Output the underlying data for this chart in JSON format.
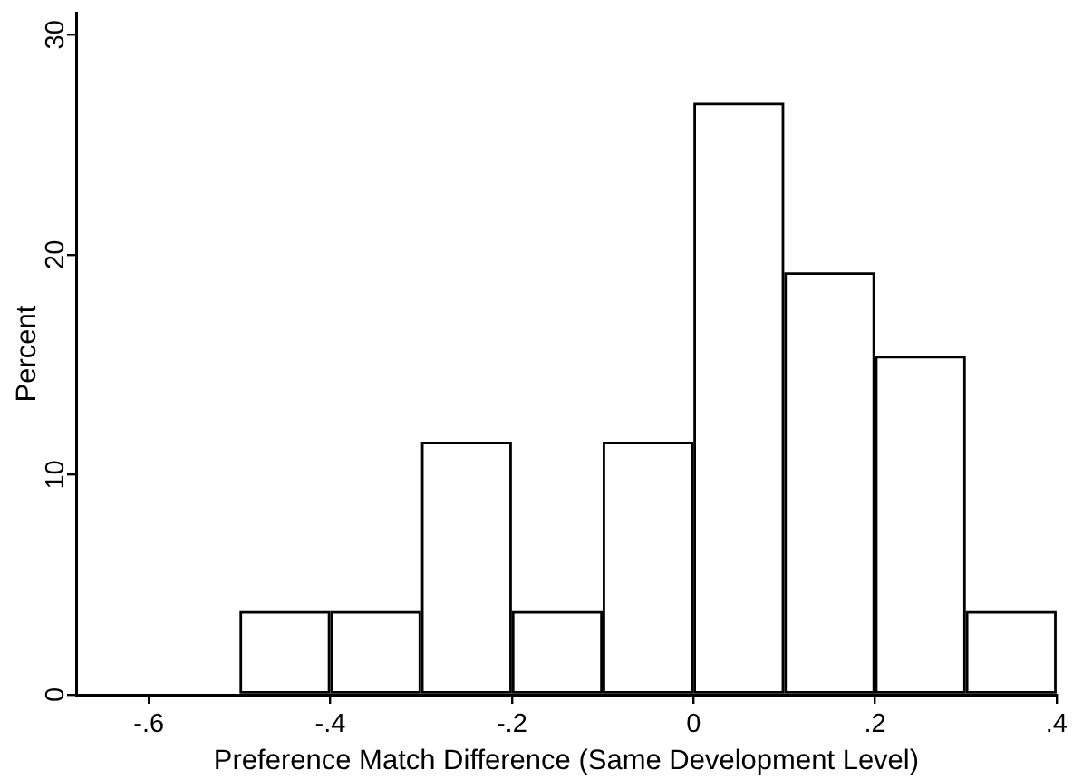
{
  "chart_data": {
    "type": "histogram",
    "xlabel": "Preference Match Difference (Same Development Level)",
    "ylabel": "Percent",
    "bins": [
      -0.5,
      -0.4,
      -0.3,
      -0.2,
      -0.1,
      0,
      0.1,
      0.2,
      0.3,
      0.4
    ],
    "values": [
      3.8,
      3.8,
      11.5,
      3.8,
      11.5,
      26.9,
      19.2,
      15.4,
      3.8
    ],
    "color": "#000000",
    "xlim": [
      -0.68,
      0.4
    ],
    "ylim": [
      0,
      31
    ],
    "xticks": [
      {
        "value": -0.6,
        "label": "-.6"
      },
      {
        "value": -0.4,
        "label": "-.4"
      },
      {
        "value": -0.2,
        "label": "-.2"
      },
      0,
      {
        "value": 0.2,
        "label": ".2"
      },
      {
        "value": 0.4,
        "label": ".4"
      }
    ],
    "yticks": [
      0,
      10,
      20,
      30
    ],
    "grid": false,
    "legend": false
  }
}
